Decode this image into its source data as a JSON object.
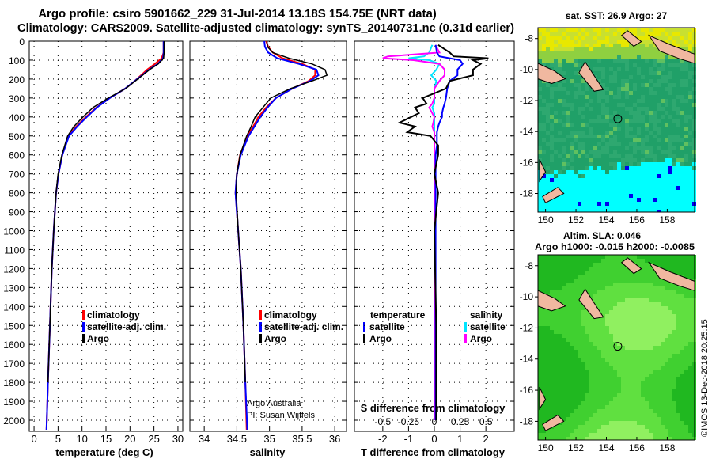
{
  "title_line1": "Argo profile: csiro 5901662_229 31-Jul-2014 13.18S 154.75E (NRT data)",
  "title_line2": "Climatology: CARS2009. Satellite-adjusted climatology: synTS_20140731.nc (0.31d earlier)",
  "credit": "©IMOS 13-Dec-2018 20:25:15",
  "colors": {
    "climatology": "#ff0000",
    "satellite": "#0000ff",
    "argo": "#000000",
    "sal_sat": "#00e5ff",
    "sal_argo": "#ff00ff"
  },
  "chart_data": [
    {
      "type": "line",
      "xlabel": "temperature (deg C)",
      "xlim": [
        -1,
        31
      ],
      "ylim": [
        2100,
        0
      ],
      "xticks": [
        "0",
        "5",
        "10",
        "15",
        "20",
        "25",
        "30"
      ],
      "yticks": [
        "0",
        "100",
        "200",
        "300",
        "400",
        "500",
        "600",
        "700",
        "800",
        "900",
        "1000",
        "1100",
        "1200",
        "1300",
        "1400",
        "1500",
        "1600",
        "1700",
        "1800",
        "1900",
        "2000"
      ],
      "legend": [
        "climatology",
        "satellite-adj. clim.",
        "Argo"
      ],
      "depth": [
        0,
        30,
        60,
        90,
        120,
        150,
        180,
        210,
        250,
        300,
        350,
        400,
        450,
        500,
        600,
        700,
        800,
        1000,
        1200,
        1500,
        1800,
        2050
      ],
      "series": [
        {
          "name": "climatology",
          "values": [
            27,
            27,
            27,
            26.6,
            25.2,
            23.6,
            22.3,
            21,
            19,
            15.8,
            13,
            10.8,
            8.8,
            7.2,
            5.9,
            5.1,
            4.6,
            4.1,
            3.7,
            3.3,
            2.9,
            2.6
          ]
        },
        {
          "name": "satellite-adj. clim.",
          "values": [
            27,
            27,
            27,
            26.9,
            25.8,
            24,
            22.5,
            21,
            19,
            15.8,
            13.1,
            11,
            9,
            7.3,
            5.9,
            5.1,
            4.6,
            4.1,
            3.7,
            3.3,
            2.9,
            2.6
          ]
        },
        {
          "name": "Argo",
          "values": [
            27.1,
            27.1,
            27.1,
            27,
            25.9,
            24.1,
            22.6,
            21.1,
            19.1,
            15.5,
            12.3,
            10.2,
            8.3,
            7,
            5.8,
            5,
            4.6,
            4.1,
            3.7,
            3.3,
            2.9,
            null
          ]
        }
      ]
    },
    {
      "type": "line",
      "xlabel": "salinity",
      "xlim": [
        33.8,
        36.2
      ],
      "ylim": [
        2100,
        0
      ],
      "xticks": [
        "34",
        "34.5",
        "35",
        "35.5",
        "36"
      ],
      "legend": [
        "climatology",
        "satellite-adj. clim.",
        "Argo"
      ],
      "annotation": [
        "Argo Australia",
        "PI: Susan Wijffels"
      ],
      "depth": [
        0,
        30,
        60,
        90,
        120,
        150,
        180,
        210,
        250,
        300,
        350,
        400,
        450,
        500,
        600,
        700,
        800,
        1000,
        1200,
        1500,
        1800,
        2050
      ],
      "series": [
        {
          "name": "climatology",
          "values": [
            34.95,
            34.98,
            35.05,
            35.2,
            35.5,
            35.7,
            35.7,
            35.6,
            35.35,
            35.1,
            34.95,
            34.83,
            34.75,
            34.66,
            34.55,
            34.5,
            34.48,
            34.52,
            34.56,
            34.6,
            34.63,
            34.65
          ]
        },
        {
          "name": "satellite-adj. clim.",
          "values": [
            34.92,
            34.93,
            34.98,
            35.12,
            35.45,
            35.72,
            35.75,
            35.62,
            35.35,
            35.1,
            34.97,
            34.86,
            34.77,
            34.68,
            34.56,
            34.5,
            34.48,
            34.52,
            34.56,
            34.6,
            34.63,
            34.66
          ]
        },
        {
          "name": "Argo",
          "values": [
            34.96,
            34.97,
            35.05,
            35.3,
            35.65,
            35.85,
            35.88,
            35.65,
            35.32,
            35.02,
            34.9,
            34.78,
            34.72,
            34.65,
            34.55,
            34.5,
            34.49,
            34.52,
            34.56,
            34.6,
            34.63,
            null
          ]
        }
      ]
    },
    {
      "type": "line",
      "xlabel": "T difference from climatology",
      "xlabel2": "S difference from climatology",
      "xlim": [
        -3,
        3
      ],
      "xticks": [
        "-2",
        "-1",
        "0",
        "1",
        "2"
      ],
      "xticks2": [
        "-0.5",
        "-0.25",
        "0",
        "0.25",
        "0.5"
      ],
      "legend_t": {
        "title": "temperature",
        "items": [
          "satellite",
          "Argo"
        ]
      },
      "legend_s": {
        "title": "salinity",
        "items": [
          "satellite",
          "Argo"
        ]
      },
      "depth": [
        20,
        60,
        80,
        90,
        100,
        120,
        150,
        180,
        210,
        250,
        300,
        330,
        350,
        380,
        400,
        430,
        450,
        480,
        500,
        550,
        600,
        700,
        800,
        1000,
        1500,
        2000
      ],
      "series": [
        {
          "name": "T satellite",
          "values": [
            0.05,
            0.1,
            0.2,
            0.6,
            1.0,
            1.1,
            0.9,
            0.9,
            0.6,
            0.5,
            0.45,
            0.4,
            0.35,
            0.3,
            0.3,
            0.2,
            0.15,
            0.1,
            0.1,
            0.1,
            0.05,
            0.05,
            0.05,
            0.05,
            0.05,
            0.05
          ]
        },
        {
          "name": "T Argo",
          "values": [
            0.1,
            0.4,
            0.5,
            1.4,
            1.0,
            1.2,
            1.0,
            1.0,
            0.4,
            0.3,
            -0.3,
            -0.2,
            -0.5,
            -0.4,
            -0.6,
            -0.9,
            -0.5,
            -0.7,
            -0.1,
            0.1,
            0.1,
            0,
            0.1,
            0,
            0.05,
            0.05
          ]
        },
        {
          "name": "S satellite",
          "values": [
            -0.02,
            -0.05,
            -0.1,
            -0.25,
            -0.05,
            0.05,
            0.02,
            -0.03,
            0.02,
            0,
            0,
            0,
            -0.02,
            0,
            0,
            0,
            0,
            0,
            0,
            0,
            0,
            0,
            0,
            0,
            0,
            0
          ]
        },
        {
          "name": "S Argo",
          "values": [
            0.01,
            0.05,
            -0.45,
            -0.5,
            -0.2,
            0.05,
            0.1,
            0.1,
            0.05,
            0,
            0,
            -0.02,
            -0.05,
            -0.02,
            0,
            -0.01,
            -0.02,
            0,
            0,
            0,
            0,
            0,
            0,
            0,
            0,
            0
          ]
        }
      ]
    },
    {
      "type": "heatmap",
      "title": "sat. SST: 26.9 Argo: 27",
      "xticks": [
        "150",
        "152",
        "154",
        "156",
        "158"
      ],
      "yticks": [
        "-8",
        "-10",
        "-12",
        "-14",
        "-16",
        "-18"
      ],
      "xlim": [
        149.5,
        159.8
      ],
      "ylim": [
        -19.2,
        -7.3
      ],
      "marker": {
        "lon": 154.75,
        "lat": -13.18
      }
    },
    {
      "type": "heatmap",
      "title": "Altim. SLA: 0.046",
      "subtitle": "Argo h1000: -0.015 h2000: -0.0085",
      "xticks": [
        "150",
        "152",
        "154",
        "156",
        "158"
      ],
      "yticks": [
        "-8",
        "-10",
        "-12",
        "-14",
        "-16",
        "-18"
      ],
      "xlim": [
        149.5,
        159.8
      ],
      "ylim": [
        -19.2,
        -7.3
      ],
      "marker": {
        "lon": 154.75,
        "lat": -13.18
      }
    }
  ]
}
